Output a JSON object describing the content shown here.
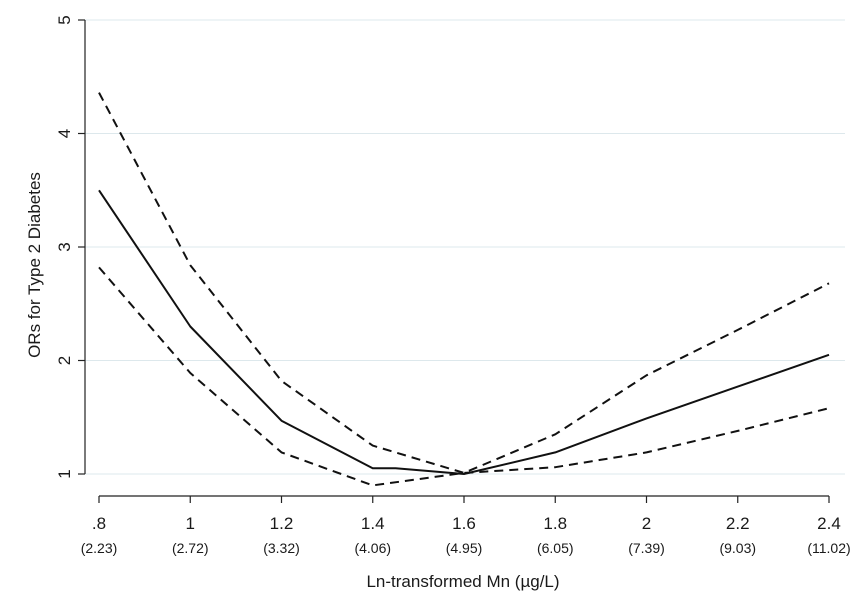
{
  "chart_data": {
    "type": "line",
    "xlabel": "Ln-transformed Mn (µg/L)",
    "ylabel": "ORs for Type 2 Diabetes",
    "xlim": [
      0.8,
      2.4
    ],
    "ylim": [
      1,
      5
    ],
    "x_ticks": [
      {
        "value": 0.8,
        "label": ".8",
        "sublabel": "(2.23)"
      },
      {
        "value": 1.0,
        "label": "1",
        "sublabel": "(2.72)"
      },
      {
        "value": 1.2,
        "label": "1.2",
        "sublabel": "(3.32)"
      },
      {
        "value": 1.4,
        "label": "1.4",
        "sublabel": "(4.06)"
      },
      {
        "value": 1.6,
        "label": "1.6",
        "sublabel": "(4.95)"
      },
      {
        "value": 1.8,
        "label": "1.8",
        "sublabel": "(6.05)"
      },
      {
        "value": 2.0,
        "label": "2",
        "sublabel": "(7.39)"
      },
      {
        "value": 2.2,
        "label": "2.2",
        "sublabel": "(9.03)"
      },
      {
        "value": 2.4,
        "label": "2.4",
        "sublabel": "(11.02)"
      }
    ],
    "y_ticks": [
      {
        "value": 1,
        "label": "1"
      },
      {
        "value": 2,
        "label": "2"
      },
      {
        "value": 3,
        "label": "3"
      },
      {
        "value": 4,
        "label": "4"
      },
      {
        "value": 5,
        "label": "5"
      }
    ],
    "grid": "horizontal",
    "series": [
      {
        "role": "estimate",
        "style": "solid",
        "x": [
          0.8,
          1.0,
          1.2,
          1.4,
          1.45,
          1.6,
          1.8,
          2.0,
          2.2,
          2.4
        ],
        "y": [
          3.5,
          2.3,
          1.47,
          1.05,
          1.05,
          1.0,
          1.19,
          1.49,
          1.77,
          2.05
        ]
      },
      {
        "role": "upper-ci",
        "style": "dashed",
        "x": [
          0.8,
          1.0,
          1.2,
          1.4,
          1.6,
          1.8,
          2.0,
          2.2,
          2.4
        ],
        "y": [
          4.36,
          2.84,
          1.82,
          1.25,
          1.01,
          1.35,
          1.87,
          2.27,
          2.68
        ]
      },
      {
        "role": "lower-ci",
        "style": "dashed",
        "x": [
          0.8,
          1.0,
          1.2,
          1.4,
          1.6,
          1.8,
          2.0,
          2.2,
          2.4
        ],
        "y": [
          2.82,
          1.89,
          1.19,
          0.9,
          1.01,
          1.06,
          1.19,
          1.38,
          1.58
        ]
      }
    ],
    "colors": {
      "line": "#111111",
      "grid": "#dde8ec",
      "axis": "#222222"
    }
  }
}
